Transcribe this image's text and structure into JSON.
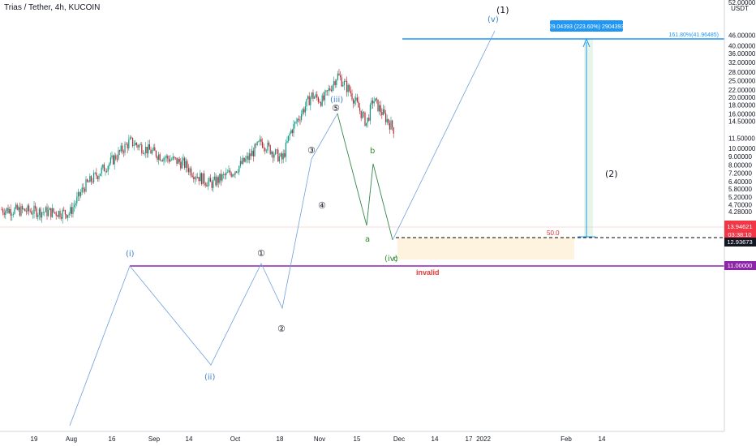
{
  "header": {
    "title": "Trias / Tether, 4h, KUCOIN"
  },
  "chart_data": {
    "type": "candlestick",
    "symbol": "Trias / Tether",
    "timeframe": "4h",
    "exchange": "KUCOIN",
    "currency_label": "USDT",
    "y_scale": "log",
    "ylim": [
      4.1,
      53
    ],
    "x_ticks": [
      "19",
      "Aug",
      "16",
      "Sep",
      "14",
      "Oct",
      "18",
      "Nov",
      "15",
      "Dec",
      "14",
      "17",
      "2022",
      "Feb",
      "14"
    ],
    "y_ticks": [
      "52.00000",
      "46.00000",
      "40.00000",
      "36.00000",
      "32.00000",
      "28.00000",
      "25.00000",
      "22.00000",
      "20.00000",
      "18.00000",
      "16.00000",
      "14.50000",
      "11.50000",
      "10.00000",
      "9.00000",
      "8.00000",
      "7.20000",
      "6.40000",
      "5.80000",
      "5.20000",
      "4.70000",
      "4.28000"
    ],
    "price_labels": {
      "high": "13.94621",
      "countdown": "03:38:10",
      "last": "12.93673",
      "invalid_level": "11.00000"
    },
    "price_path": [
      {
        "x": "19",
        "y": 4.4
      },
      {
        "x": "Aug",
        "y": 4.2
      },
      {
        "x": "5",
        "y": 6.0
      },
      {
        "x": "16",
        "y": 8.5
      },
      {
        "x": "23",
        "y": 11.0
      },
      {
        "x": "Sep",
        "y": 9.0
      },
      {
        "x": "7",
        "y": 8.2
      },
      {
        "x": "14",
        "y": 7.1
      },
      {
        "x": "21",
        "y": 6.2
      },
      {
        "x": "28",
        "y": 7.4
      },
      {
        "x": "Oct",
        "y": 8.8
      },
      {
        "x": "12",
        "y": 11.0
      },
      {
        "x": "18",
        "y": 8.6
      },
      {
        "x": "21",
        "y": 12.5
      },
      {
        "x": "28",
        "y": 20.5
      },
      {
        "x": "Nov",
        "y": 19.0
      },
      {
        "x": "9",
        "y": 27.0
      },
      {
        "x": "13",
        "y": 21.5
      },
      {
        "x": "18",
        "y": 14.0
      },
      {
        "x": "21",
        "y": 19.5
      },
      {
        "x": "25",
        "y": 15.5
      },
      {
        "x": "29",
        "y": 12.9
      }
    ],
    "projection": {
      "from": {
        "x": "29",
        "y": 12.5
      },
      "to": {
        "x": "Dec 18",
        "y": 47.0
      }
    },
    "wave_labels": [
      "(i)",
      "(ii)",
      "(iii)",
      "(iv)",
      "(v)",
      "(1)",
      "(2)",
      "①",
      "②",
      "③",
      "④",
      "⑤",
      "a",
      "b",
      "c"
    ],
    "levels": [
      {
        "name": "fib-161.8",
        "label": "161.80%(41.96485)",
        "y": 41.96485,
        "color": "#2196f3"
      },
      {
        "name": "fib-50",
        "label": "50.0",
        "y": 12.93673,
        "color": "#000000"
      },
      {
        "name": "invalid",
        "label": "invalid",
        "y": 11.0,
        "color": "#9c27b0"
      }
    ],
    "measure_box": {
      "label": "29.04393 (223.60%) 2904393",
      "color": "#2196f3"
    }
  }
}
